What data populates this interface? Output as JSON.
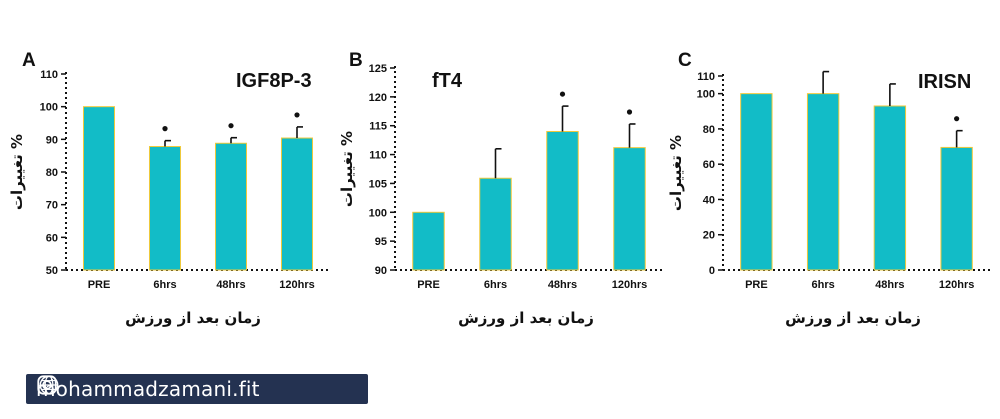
{
  "chart_data": [
    {
      "panel": "A",
      "type": "bar",
      "title": "IGF8P-3",
      "categories": [
        "PRE",
        "6hrs",
        "48hrs",
        "120hrs"
      ],
      "values": [
        100,
        87.8,
        88.8,
        90.4
      ],
      "errors": [
        0,
        1.8,
        1.7,
        3.4
      ],
      "significant": [
        false,
        true,
        true,
        true
      ],
      "ylabel": "% تغییرات",
      "xlabel": "زمان بعد از ورزش",
      "ylim": [
        50,
        110
      ],
      "yticks": [
        50,
        60,
        70,
        80,
        90,
        100,
        110
      ],
      "bar_color": "#12bcc7"
    },
    {
      "panel": "B",
      "type": "bar",
      "title": "fT4",
      "categories": [
        "PRE",
        "6hrs",
        "48hrs",
        "120hrs"
      ],
      "values": [
        100,
        105.9,
        114,
        111.2
      ],
      "errors": [
        0,
        5.1,
        4.4,
        4.1
      ],
      "significant": [
        false,
        false,
        true,
        true
      ],
      "ylabel": "% تغییرات",
      "xlabel": "زمان بعد از ورزش",
      "ylim": [
        90,
        125
      ],
      "yticks": [
        90,
        95,
        100,
        105,
        110,
        115,
        120,
        125
      ],
      "bar_color": "#12bcc7"
    },
    {
      "panel": "C",
      "type": "bar",
      "title": "IRISN",
      "categories": [
        "PRE",
        "6hrs",
        "48hrs",
        "120hrs"
      ],
      "values": [
        100,
        100,
        93,
        69.5
      ],
      "errors": [
        0,
        12.5,
        12.5,
        9.5
      ],
      "significant": [
        false,
        false,
        false,
        true
      ],
      "ylabel": "% تغییرات",
      "xlabel": "زمان بعد از ورزش",
      "ylim": [
        0,
        110
      ],
      "yticks": [
        0,
        20,
        40,
        60,
        80,
        100,
        110
      ],
      "bar_color": "#12bcc7"
    }
  ],
  "watermark": {
    "handle": "mohammadzamani.fit",
    "icon_left": "instagram-icon",
    "icon_right": "globe-icon",
    "background": "#243251"
  }
}
